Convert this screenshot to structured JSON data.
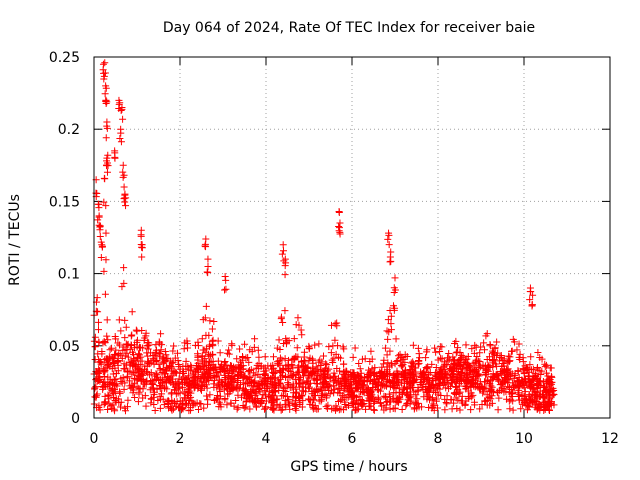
{
  "chart_data": {
    "type": "scatter",
    "title": "Day 064 of 2024, Rate Of TEC Index for receiver baie",
    "xlabel": "GPS time / hours",
    "ylabel": "ROTI / TECUs",
    "xlim": [
      0,
      12
    ],
    "ylim": [
      0,
      0.25
    ],
    "xticks": [
      0,
      2,
      4,
      6,
      8,
      10,
      12
    ],
    "xtick_labels": [
      "0",
      "2",
      "4",
      "6",
      "8",
      "10",
      "12"
    ],
    "yticks": [
      0,
      0.05,
      0.1,
      0.15,
      0.2,
      0.25
    ],
    "ytick_labels": [
      "0",
      "0.05",
      "0.1",
      "0.15",
      "0.2",
      "0.25"
    ],
    "grid": true,
    "marker": "+",
    "color": "#ff0000",
    "data_range_x": [
      0,
      10.7
    ],
    "baseline": {
      "x": [
        0,
        1,
        2,
        3,
        4,
        5,
        6,
        7,
        8,
        9,
        10,
        10.7
      ],
      "y": [
        0.02,
        0.03,
        0.02,
        0.02,
        0.02,
        0.02,
        0.017,
        0.017,
        0.02,
        0.02,
        0.015,
        0.015
      ]
    },
    "peaks": [
      {
        "x": 0.05,
        "y": 0.165
      },
      {
        "x": 0.1,
        "y": 0.148
      },
      {
        "x": 0.12,
        "y": 0.14
      },
      {
        "x": 0.15,
        "y": 0.133
      },
      {
        "x": 0.18,
        "y": 0.12
      },
      {
        "x": 0.22,
        "y": 0.245
      },
      {
        "x": 0.25,
        "y": 0.246
      },
      {
        "x": 0.27,
        "y": 0.23
      },
      {
        "x": 0.28,
        "y": 0.22
      },
      {
        "x": 0.3,
        "y": 0.205
      },
      {
        "x": 0.3,
        "y": 0.18
      },
      {
        "x": 0.32,
        "y": 0.182
      },
      {
        "x": 0.48,
        "y": 0.185
      },
      {
        "x": 0.58,
        "y": 0.22
      },
      {
        "x": 0.62,
        "y": 0.2
      },
      {
        "x": 0.65,
        "y": 0.215
      },
      {
        "x": 0.68,
        "y": 0.175
      },
      {
        "x": 0.7,
        "y": 0.16
      },
      {
        "x": 0.72,
        "y": 0.155
      },
      {
        "x": 1.1,
        "y": 0.13
      },
      {
        "x": 1.12,
        "y": 0.12
      },
      {
        "x": 2.6,
        "y": 0.124
      },
      {
        "x": 2.65,
        "y": 0.11
      },
      {
        "x": 3.05,
        "y": 0.098
      },
      {
        "x": 4.4,
        "y": 0.12
      },
      {
        "x": 4.45,
        "y": 0.11
      },
      {
        "x": 5.7,
        "y": 0.143
      },
      {
        "x": 5.72,
        "y": 0.135
      },
      {
        "x": 6.85,
        "y": 0.128
      },
      {
        "x": 6.9,
        "y": 0.115
      },
      {
        "x": 7.0,
        "y": 0.097
      },
      {
        "x": 10.15,
        "y": 0.09
      },
      {
        "x": 10.2,
        "y": 0.085
      }
    ],
    "bursts": [
      {
        "center": 0.05,
        "width": 0.15,
        "peak": 0.1
      },
      {
        "center": 0.25,
        "width": 0.08,
        "peak": 0.2
      },
      {
        "center": 0.65,
        "width": 0.1,
        "peak": 0.16
      },
      {
        "center": 0.9,
        "width": 0.3,
        "peak": 0.085
      },
      {
        "center": 1.3,
        "width": 0.4,
        "peak": 0.06
      },
      {
        "center": 2.6,
        "width": 0.3,
        "peak": 0.09
      },
      {
        "center": 2.8,
        "width": 0.3,
        "peak": 0.07
      },
      {
        "center": 3.5,
        "width": 0.4,
        "peak": 0.045
      },
      {
        "center": 4.4,
        "width": 0.2,
        "peak": 0.09
      },
      {
        "center": 4.75,
        "width": 0.3,
        "peak": 0.075
      },
      {
        "center": 5.6,
        "width": 0.3,
        "peak": 0.08
      },
      {
        "center": 6.95,
        "width": 0.35,
        "peak": 0.09
      },
      {
        "center": 7.5,
        "width": 0.3,
        "peak": 0.05
      },
      {
        "center": 8.4,
        "width": 0.6,
        "peak": 0.055
      },
      {
        "center": 9.2,
        "width": 0.6,
        "peak": 0.065
      },
      {
        "center": 9.8,
        "width": 0.4,
        "peak": 0.06
      }
    ]
  }
}
